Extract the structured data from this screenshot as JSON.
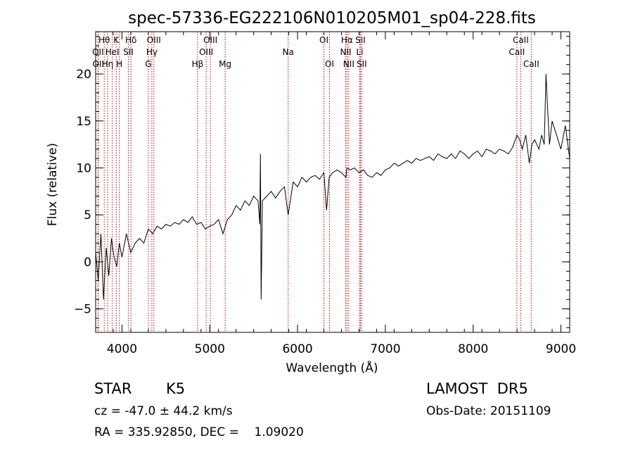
{
  "chart_data": {
    "type": "line",
    "title": "spec-57336-EG222106N010205M01_sp04-228.fits",
    "xlabel": "Wavelength (Å)",
    "ylabel": "Flux (relative)",
    "xlim": [
      3700,
      9100
    ],
    "ylim": [
      -7.5,
      24.5
    ],
    "x_ticks": [
      4000,
      5000,
      6000,
      7000,
      8000,
      9000
    ],
    "y_ticks": [
      -5,
      0,
      5,
      10,
      15,
      20
    ],
    "grid": false,
    "line_color": "#000000",
    "marker_color": "#cc0000",
    "series": [
      {
        "x": [
          3700,
          3730,
          3760,
          3790,
          3820,
          3850,
          3880,
          3910,
          3940,
          3970,
          4000,
          4050,
          4100,
          4150,
          4200,
          4250,
          4300,
          4350,
          4400,
          4450,
          4500,
          4550,
          4600,
          4650,
          4700,
          4750,
          4800,
          4850,
          4900,
          4950,
          5000,
          5050,
          5100,
          5150,
          5200,
          5250,
          5300,
          5350,
          5400,
          5450,
          5500,
          5550,
          5570,
          5577,
          5585,
          5600,
          5650,
          5700,
          5750,
          5800,
          5850,
          5893,
          5950,
          6000,
          6050,
          6100,
          6150,
          6200,
          6250,
          6300,
          6330,
          6360,
          6400,
          6450,
          6500,
          6550,
          6563,
          6600,
          6650,
          6700,
          6750,
          6800,
          6850,
          6900,
          6950,
          7000,
          7050,
          7100,
          7150,
          7200,
          7250,
          7300,
          7350,
          7400,
          7450,
          7500,
          7550,
          7600,
          7650,
          7700,
          7750,
          7800,
          7850,
          7900,
          7950,
          8000,
          8050,
          8100,
          8150,
          8200,
          8250,
          8300,
          8350,
          8400,
          8450,
          8500,
          8530,
          8560,
          8600,
          8640,
          8670,
          8700,
          8750,
          8780,
          8810,
          8830,
          8850,
          8870,
          8900,
          8950,
          9000,
          9050,
          9100
        ],
        "y": [
          1.0,
          -2.0,
          3.0,
          -4.0,
          1.5,
          -1.5,
          2.5,
          0.5,
          -0.5,
          2.0,
          0.5,
          3.0,
          1.0,
          2.0,
          2.5,
          2.0,
          3.5,
          3.0,
          3.8,
          3.5,
          4.0,
          3.8,
          4.2,
          4.0,
          4.5,
          4.2,
          4.8,
          4.0,
          4.2,
          3.5,
          3.8,
          4.0,
          4.5,
          3.0,
          4.5,
          5.0,
          6.0,
          5.5,
          6.5,
          6.0,
          7.0,
          6.5,
          4.0,
          11.5,
          -4.0,
          6.5,
          7.0,
          7.5,
          6.8,
          7.5,
          8.0,
          5.0,
          8.5,
          8.0,
          9.0,
          8.5,
          9.0,
          9.2,
          8.8,
          9.5,
          5.5,
          9.0,
          9.5,
          9.8,
          9.5,
          9.0,
          10.0,
          9.8,
          10.0,
          9.5,
          9.8,
          9.2,
          9.0,
          9.5,
          9.2,
          9.8,
          10.0,
          10.5,
          10.2,
          10.5,
          10.8,
          10.5,
          11.0,
          10.8,
          11.0,
          11.2,
          10.8,
          11.5,
          11.2,
          11.0,
          11.5,
          11.0,
          11.8,
          11.5,
          11.0,
          11.5,
          11.8,
          11.2,
          12.0,
          11.8,
          11.5,
          12.0,
          11.8,
          11.5,
          12.2,
          13.5,
          13.0,
          12.0,
          13.5,
          10.5,
          12.5,
          13.0,
          12.0,
          13.5,
          12.5,
          20.0,
          16.0,
          12.5,
          15.0,
          13.5,
          12.0,
          14.5,
          11.0
        ]
      }
    ],
    "line_markers": [
      {
        "x": 3727,
        "label": "OII",
        "row": 1
      },
      {
        "x": 3730,
        "label": "OII",
        "row": 2
      },
      {
        "x": 3798,
        "label": "Hθ",
        "row": 0
      },
      {
        "x": 3836,
        "label": "Hη",
        "row": 2
      },
      {
        "x": 3889,
        "label": "HeI",
        "row": 1
      },
      {
        "x": 3934,
        "label": "K",
        "row": 0
      },
      {
        "x": 3970,
        "label": "H",
        "row": 2
      },
      {
        "x": 4072,
        "label": "SII",
        "row": 1
      },
      {
        "x": 4102,
        "label": "Hδ",
        "row": 0
      },
      {
        "x": 4300,
        "label": "G",
        "row": 2
      },
      {
        "x": 4340,
        "label": "Hγ",
        "row": 1
      },
      {
        "x": 4363,
        "label": "OIII",
        "row": 0
      },
      {
        "x": 4861,
        "label": "Hβ",
        "row": 2
      },
      {
        "x": 4959,
        "label": "OIII",
        "row": 1
      },
      {
        "x": 5007,
        "label": "OIII",
        "row": 0
      },
      {
        "x": 5175,
        "label": "Mg",
        "row": 2
      },
      {
        "x": 5893,
        "label": "Na",
        "row": 1
      },
      {
        "x": 6300,
        "label": "OI",
        "row": 0
      },
      {
        "x": 6364,
        "label": "OI",
        "row": 2
      },
      {
        "x": 6548,
        "label": "NII",
        "row": 1
      },
      {
        "x": 6563,
        "label": "Hα",
        "row": 0
      },
      {
        "x": 6583,
        "label": "NII",
        "row": 2
      },
      {
        "x": 6708,
        "label": "Li",
        "row": 1
      },
      {
        "x": 6716,
        "label": "SII",
        "row": 0
      },
      {
        "x": 6731,
        "label": "SII",
        "row": 2
      },
      {
        "x": 8498,
        "label": "CaII",
        "row": 1
      },
      {
        "x": 8542,
        "label": "CaII",
        "row": 0
      },
      {
        "x": 8662,
        "label": "CaII",
        "row": 2
      }
    ]
  },
  "info": {
    "class_label": "STAR",
    "subclass": "K5",
    "survey": "LAMOST  DR5",
    "cz": "cz = -47.0 ± 44.2 km/s",
    "obs_date": "Obs-Date: 20151109",
    "coords": "RA = 335.92850, DEC =    1.09020"
  }
}
